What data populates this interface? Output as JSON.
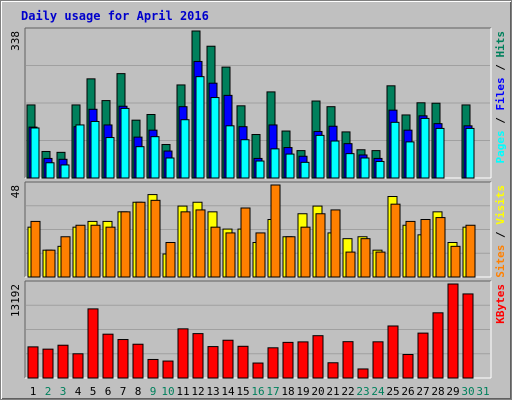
{
  "title": "Daily usage for April 2016",
  "colors": {
    "background": "#c0c0c0",
    "panel": "#c0c0c0",
    "hits": "#00805c",
    "files": "#0000ff",
    "pages": "#00ffff",
    "visits": "#ffff00",
    "sites": "#ff8000",
    "kbytes": "#ff0000",
    "weekday_label": "#000000",
    "weekend_label": "#00805c",
    "title": "#0000cc"
  },
  "chart_data": [
    {
      "type": "bar",
      "name": "hits-files-pages",
      "y_max_label": "338",
      "categories": [
        "1",
        "2",
        "3",
        "4",
        "5",
        "6",
        "7",
        "8",
        "9",
        "10",
        "11",
        "12",
        "13",
        "14",
        "15",
        "16",
        "17",
        "18",
        "19",
        "20",
        "21",
        "22",
        "23",
        "24",
        "25",
        "26",
        "27",
        "28",
        "29",
        "30",
        "31"
      ],
      "series": [
        {
          "name": "Hits",
          "values": [
            168,
            61,
            59,
            168,
            228,
            178,
            240,
            133,
            146,
            77,
            214,
            338,
            303,
            255,
            166,
            100,
            198,
            108,
            63,
            177,
            164,
            106,
            65,
            63,
            212,
            145,
            173,
            172,
            0,
            168,
            0
          ]
        },
        {
          "name": "Files",
          "values": [
            117,
            45,
            43,
            118,
            158,
            122,
            165,
            94,
            110,
            62,
            164,
            268,
            218,
            190,
            118,
            45,
            122,
            70,
            50,
            107,
            119,
            79,
            53,
            45,
            156,
            110,
            143,
            125,
            0,
            120,
            0
          ]
        },
        {
          "name": "Pages",
          "values": [
            115,
            35,
            30,
            122,
            130,
            93,
            160,
            72,
            95,
            46,
            134,
            233,
            185,
            120,
            88,
            39,
            67,
            55,
            36,
            98,
            85,
            56,
            46,
            38,
            128,
            83,
            137,
            114,
            0,
            114,
            0
          ]
        }
      ],
      "legend": [
        "Pages",
        "Files",
        "Hits"
      ]
    },
    {
      "type": "bar",
      "name": "visits-sites",
      "y_max_label": "48",
      "categories": [
        "1",
        "2",
        "3",
        "4",
        "5",
        "6",
        "7",
        "8",
        "9",
        "10",
        "11",
        "12",
        "13",
        "14",
        "15",
        "16",
        "17",
        "18",
        "19",
        "20",
        "21",
        "22",
        "23",
        "24",
        "25",
        "26",
        "27",
        "28",
        "29",
        "30",
        "31"
      ],
      "series": [
        {
          "name": "Visits",
          "values": [
            26,
            14,
            16,
            26,
            29,
            29,
            34,
            39,
            43,
            12,
            37,
            39,
            34,
            25,
            25,
            18,
            30,
            21,
            33,
            37,
            23,
            20,
            21,
            14,
            42,
            27,
            22,
            34,
            18,
            26,
            0
          ]
        },
        {
          "name": "Sites",
          "values": [
            29,
            14,
            21,
            27,
            27,
            26,
            34,
            39,
            40,
            18,
            34,
            35,
            26,
            23,
            36,
            23,
            48,
            21,
            26,
            33,
            35,
            13,
            20,
            13,
            38,
            29,
            30,
            31,
            16,
            27,
            0
          ]
        }
      ],
      "legend": [
        "Sites",
        "Visits"
      ]
    },
    {
      "type": "bar",
      "name": "kbytes",
      "y_max_label": "13192",
      "categories": [
        "1",
        "2",
        "3",
        "4",
        "5",
        "6",
        "7",
        "8",
        "9",
        "10",
        "11",
        "12",
        "13",
        "14",
        "15",
        "16",
        "17",
        "18",
        "19",
        "20",
        "21",
        "22",
        "23",
        "24",
        "25",
        "26",
        "27",
        "28",
        "29",
        "30",
        "31"
      ],
      "series": [
        {
          "name": "KBytes",
          "values": [
            4370,
            4050,
            4600,
            3400,
            9700,
            6150,
            5400,
            4740,
            2600,
            2380,
            6900,
            6230,
            4410,
            5300,
            4450,
            2100,
            4240,
            5000,
            5070,
            5940,
            2140,
            5100,
            1270,
            5080,
            7300,
            3300,
            6300,
            9150,
            13192,
            11800,
            0
          ]
        }
      ],
      "legend": [
        "KBytes"
      ]
    }
  ],
  "day_labels": [
    {
      "text": "1",
      "weekend": false
    },
    {
      "text": "2",
      "weekend": true
    },
    {
      "text": "3",
      "weekend": true
    },
    {
      "text": "4",
      "weekend": false
    },
    {
      "text": "5",
      "weekend": false
    },
    {
      "text": "6",
      "weekend": false
    },
    {
      "text": "7",
      "weekend": false
    },
    {
      "text": "8",
      "weekend": false
    },
    {
      "text": "9",
      "weekend": true
    },
    {
      "text": "10",
      "weekend": true
    },
    {
      "text": "11",
      "weekend": false
    },
    {
      "text": "12",
      "weekend": false
    },
    {
      "text": "13",
      "weekend": false
    },
    {
      "text": "14",
      "weekend": false
    },
    {
      "text": "15",
      "weekend": false
    },
    {
      "text": "16",
      "weekend": true
    },
    {
      "text": "17",
      "weekend": true
    },
    {
      "text": "18",
      "weekend": false
    },
    {
      "text": "19",
      "weekend": false
    },
    {
      "text": "20",
      "weekend": false
    },
    {
      "text": "21",
      "weekend": false
    },
    {
      "text": "22",
      "weekend": false
    },
    {
      "text": "23",
      "weekend": true
    },
    {
      "text": "24",
      "weekend": true
    },
    {
      "text": "25",
      "weekend": false
    },
    {
      "text": "26",
      "weekend": false
    },
    {
      "text": "27",
      "weekend": false
    },
    {
      "text": "28",
      "weekend": false
    },
    {
      "text": "29",
      "weekend": false
    },
    {
      "text": "30",
      "weekend": true
    },
    {
      "text": "31",
      "weekend": true
    }
  ]
}
